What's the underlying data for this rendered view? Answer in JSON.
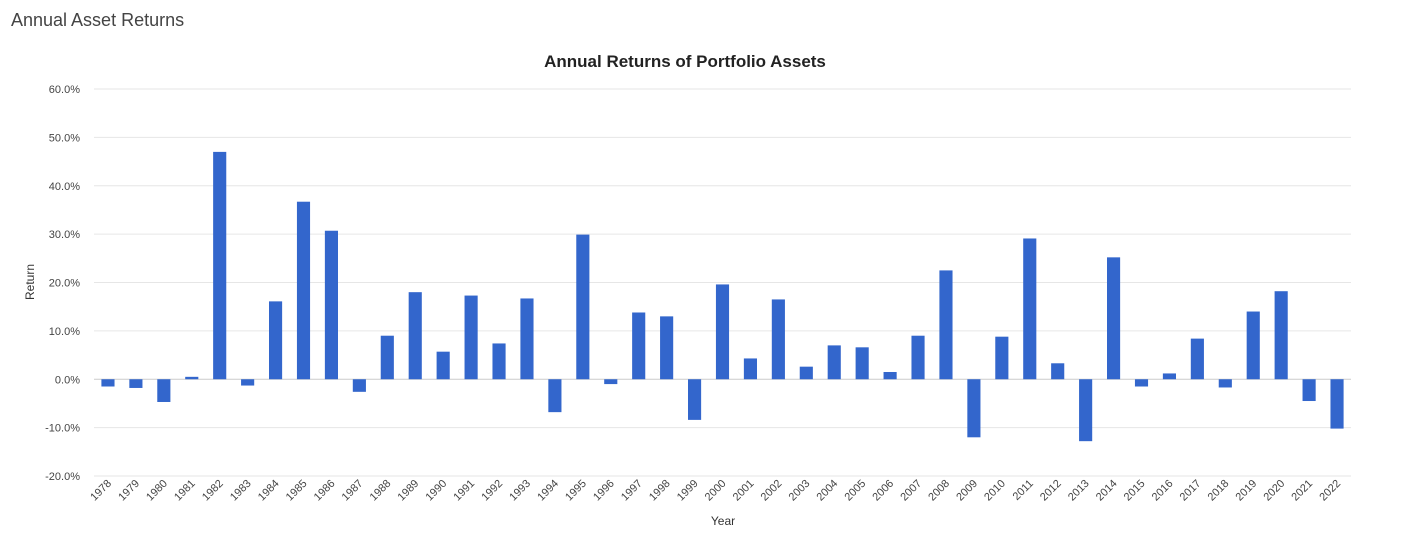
{
  "page": {
    "heading": "Annual Asset Returns"
  },
  "chart_data": {
    "type": "bar",
    "title": "Annual Returns of Portfolio Assets",
    "xlabel": "Year",
    "ylabel": "Return",
    "ylim": [
      -20,
      60
    ],
    "yticks": [
      -20,
      -10,
      0,
      10,
      20,
      30,
      40,
      50,
      60
    ],
    "ytick_format": "percent_1dp",
    "grid": true,
    "legend": "none",
    "bar_color": "#3366cc",
    "categories": [
      "1978",
      "1979",
      "1980",
      "1981",
      "1982",
      "1983",
      "1984",
      "1985",
      "1986",
      "1987",
      "1988",
      "1989",
      "1990",
      "1991",
      "1992",
      "1993",
      "1994",
      "1995",
      "1996",
      "1997",
      "1998",
      "1999",
      "2000",
      "2001",
      "2002",
      "2003",
      "2004",
      "2005",
      "2006",
      "2007",
      "2008",
      "2009",
      "2010",
      "2011",
      "2012",
      "2013",
      "2014",
      "2015",
      "2016",
      "2017",
      "2018",
      "2019",
      "2020",
      "2021",
      "2022"
    ],
    "values": [
      -1.5,
      -1.8,
      -4.7,
      0.5,
      47.0,
      -1.3,
      16.1,
      36.7,
      30.7,
      -2.6,
      9.0,
      18.0,
      5.7,
      17.3,
      7.4,
      16.7,
      -6.8,
      29.9,
      -1.0,
      13.8,
      13.0,
      -8.4,
      19.6,
      4.3,
      16.5,
      2.6,
      7.0,
      6.6,
      1.5,
      9.0,
      22.5,
      -12.0,
      8.8,
      29.1,
      3.3,
      -12.8,
      25.2,
      -1.5,
      1.2,
      8.4,
      -1.7,
      14.0,
      18.2,
      -4.5,
      -10.2
    ]
  }
}
